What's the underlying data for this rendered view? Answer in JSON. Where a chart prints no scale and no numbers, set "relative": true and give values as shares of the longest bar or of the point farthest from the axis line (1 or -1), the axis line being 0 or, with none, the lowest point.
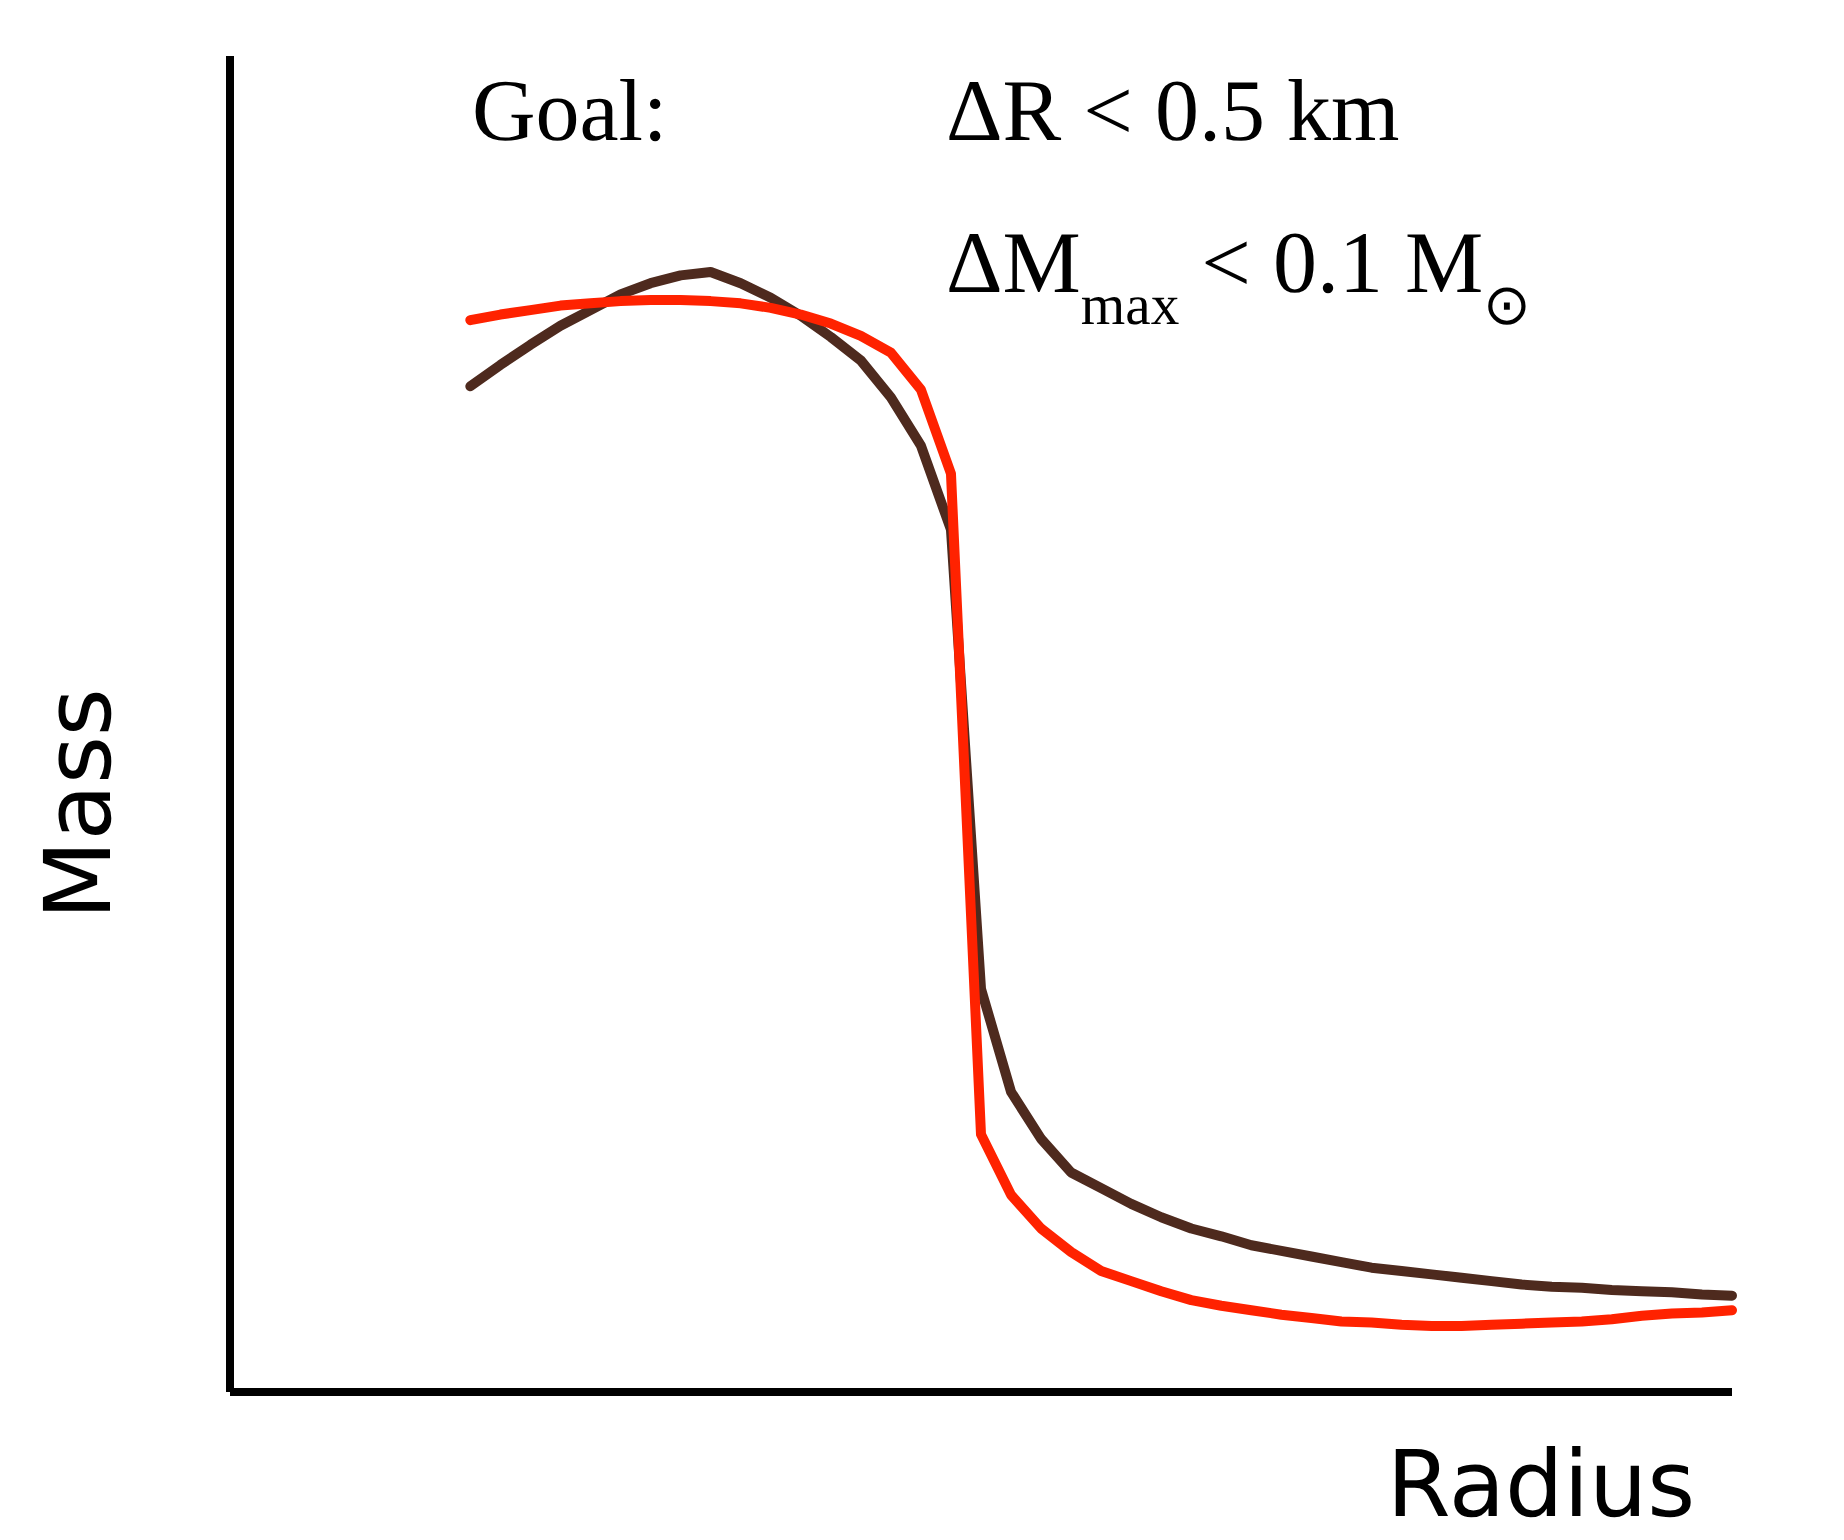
{
  "chart_data": {
    "type": "line",
    "relative": true,
    "xlabel": "Radius",
    "ylabel": "Mass",
    "line_style": "solid",
    "annotations": [
      "Goal:",
      "ΔR  <  0.5 km",
      "ΔM$_{max}$ < 0.1 M$_{⊙}$"
    ],
    "categories": [
      null,
      null,
      null,
      null,
      null,
      null,
      null,
      null,
      null,
      null,
      null,
      null,
      null,
      null,
      null,
      null,
      null,
      null,
      null,
      null,
      null,
      null,
      null,
      null,
      null,
      null,
      null,
      null,
      null,
      null,
      null,
      null,
      null,
      null,
      null,
      null,
      null,
      null,
      null,
      null,
      null,
      null,
      null,
      null,
      null,
      null,
      null,
      null,
      null,
      null,
      null
    ],
    "series": [
      {
        "color": "#4e2a1e",
        "values": [
          null,
          null,
          null,
          null,
          null,
          null,
          null,
          null,
          0.898,
          0.917,
          0.935,
          0.952,
          0.966,
          0.98,
          0.99,
          0.997,
          1.0,
          0.99,
          0.977,
          0.961,
          0.942,
          0.921,
          0.888,
          0.845,
          0.77,
          0.36,
          0.268,
          0.226,
          0.196,
          0.182,
          0.168,
          0.156,
          0.146,
          0.139,
          0.131,
          0.126,
          0.121,
          0.116,
          0.111,
          0.108,
          0.105,
          0.102,
          0.099,
          0.096,
          0.094,
          0.093,
          0.091,
          0.09,
          0.089,
          0.087,
          0.086
        ]
      },
      {
        "color": "#ff2200",
        "values": [
          null,
          null,
          null,
          null,
          null,
          null,
          null,
          null,
          0.957,
          0.962,
          0.966,
          0.97,
          0.972,
          0.974,
          0.975,
          0.975,
          0.974,
          0.972,
          0.968,
          0.962,
          0.954,
          0.943,
          0.928,
          0.895,
          0.82,
          0.23,
          0.176,
          0.146,
          0.125,
          0.108,
          0.099,
          0.09,
          0.082,
          0.077,
          0.073,
          0.069,
          0.066,
          0.063,
          0.062,
          0.06,
          0.059,
          0.059,
          0.06,
          0.061,
          0.062,
          0.063,
          0.065,
          0.068,
          0.07,
          0.071,
          0.073
        ]
      }
    ]
  }
}
